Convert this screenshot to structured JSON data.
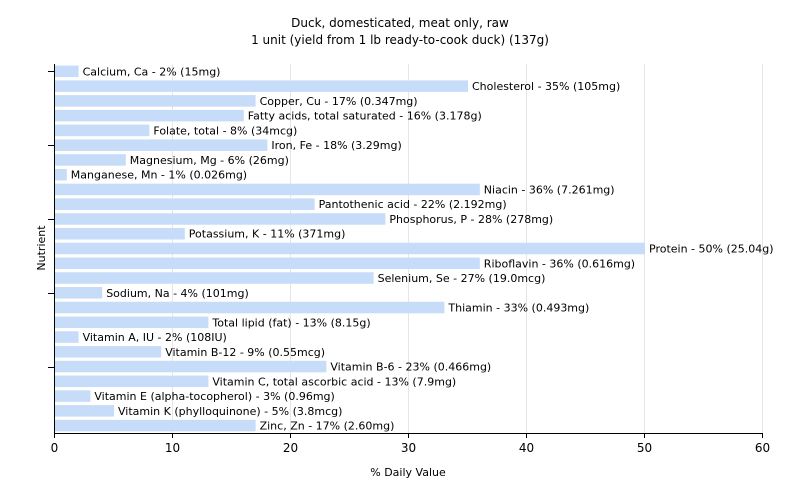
{
  "chart_data": {
    "type": "bar",
    "orientation": "horizontal",
    "title": "Duck, domesticated, meat only, raw",
    "subtitle": "1 unit (yield from 1 lb ready-to-cook duck) (137g)",
    "xlabel": "% Daily Value",
    "ylabel": "Nutrient",
    "xlim": [
      0,
      60
    ],
    "xticks": [
      0,
      10,
      20,
      30,
      40,
      50,
      60
    ],
    "grid": "vertical",
    "bar_color": "#c6dcf8",
    "bars": [
      {
        "label": "Calcium, Ca - 2% (15mg)",
        "value": 2
      },
      {
        "label": "Cholesterol - 35% (105mg)",
        "value": 35
      },
      {
        "label": "Copper, Cu - 17% (0.347mg)",
        "value": 17
      },
      {
        "label": "Fatty acids, total saturated - 16% (3.178g)",
        "value": 16
      },
      {
        "label": "Folate, total - 8% (34mcg)",
        "value": 8
      },
      {
        "label": "Iron, Fe - 18% (3.29mg)",
        "value": 18
      },
      {
        "label": "Magnesium, Mg - 6% (26mg)",
        "value": 6
      },
      {
        "label": "Manganese, Mn - 1% (0.026mg)",
        "value": 1
      },
      {
        "label": "Niacin - 36% (7.261mg)",
        "value": 36
      },
      {
        "label": "Pantothenic acid - 22% (2.192mg)",
        "value": 22
      },
      {
        "label": "Phosphorus, P - 28% (278mg)",
        "value": 28
      },
      {
        "label": "Potassium, K - 11% (371mg)",
        "value": 11
      },
      {
        "label": "Protein - 50% (25.04g)",
        "value": 50
      },
      {
        "label": "Riboflavin - 36% (0.616mg)",
        "value": 36
      },
      {
        "label": "Selenium, Se - 27% (19.0mcg)",
        "value": 27
      },
      {
        "label": "Sodium, Na - 4% (101mg)",
        "value": 4
      },
      {
        "label": "Thiamin - 33% (0.493mg)",
        "value": 33
      },
      {
        "label": "Total lipid (fat) - 13% (8.15g)",
        "value": 13
      },
      {
        "label": "Vitamin A, IU - 2% (108IU)",
        "value": 2
      },
      {
        "label": "Vitamin B-12 - 9% (0.55mcg)",
        "value": 9
      },
      {
        "label": "Vitamin B-6 - 23% (0.466mg)",
        "value": 23
      },
      {
        "label": "Vitamin C, total ascorbic acid - 13% (7.9mg)",
        "value": 13
      },
      {
        "label": "Vitamin E (alpha-tocopherol) - 3% (0.96mg)",
        "value": 3
      },
      {
        "label": "Vitamin K (phylloquinone) - 5% (3.8mcg)",
        "value": 5
      },
      {
        "label": "Zinc, Zn - 17% (2.60mg)",
        "value": 17
      }
    ]
  }
}
